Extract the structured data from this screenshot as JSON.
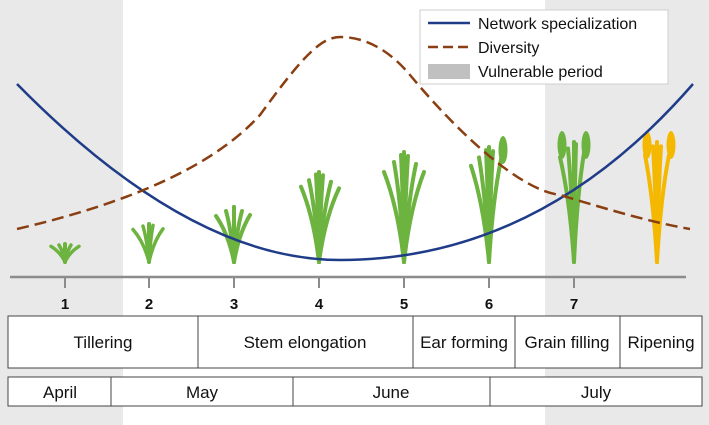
{
  "legend": {
    "items": [
      {
        "label": "Network specialization",
        "style": "solid",
        "color": "#1f3c88"
      },
      {
        "label": "Diversity",
        "style": "dashed",
        "color": "#8a3f12"
      },
      {
        "label": "Vulnerable period",
        "style": "band",
        "color": "#c0c0c0"
      }
    ]
  },
  "stages": {
    "numbers": [
      "1",
      "2",
      "3",
      "4",
      "5",
      "6",
      "7"
    ]
  },
  "phases": [
    "Tillering",
    "Stem elongation",
    "Ear forming",
    "Grain filling",
    "Ripening"
  ],
  "months": [
    "April",
    "May",
    "June",
    "July"
  ],
  "colors": {
    "background_band": "#e9e9e9",
    "specialization_line": "#1f3c88",
    "diversity_line": "#8a3f12",
    "plant_green": "#6db33f",
    "plant_ripe": "#f5b800",
    "axis": "#8c8c8c"
  }
}
